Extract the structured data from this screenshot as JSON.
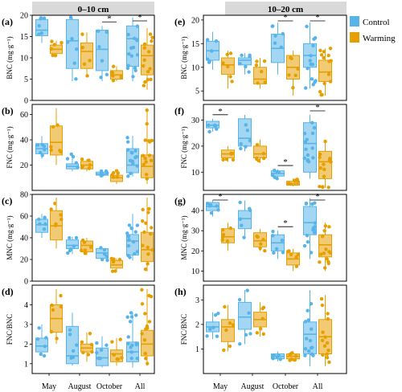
{
  "figure": {
    "legend": {
      "items": [
        {
          "label": "Control",
          "color": "#56B4E9"
        },
        {
          "label": "Warming",
          "color": "#E69F00"
        }
      ]
    },
    "column_headers": [
      "0–10 cm",
      "10–20 cm"
    ],
    "x_tick_labels": [
      "May",
      "August",
      "October",
      "All"
    ],
    "colors": {
      "control": "#56B4E9",
      "warming": "#E69F00",
      "header_bg": "#d9d9d9"
    }
  },
  "chart_data": [
    {
      "type": "box",
      "panel": "(a)",
      "ylabel": "BNC (mg·g⁻¹)",
      "ylim": [
        0,
        20
      ],
      "yticks": [
        0,
        5,
        10,
        15,
        20
      ],
      "categories": [
        "May",
        "August",
        "October",
        "All"
      ],
      "series": [
        {
          "name": "Control",
          "boxes": [
            {
              "min": 13.5,
              "q1": 15.2,
              "median": 16.5,
              "q3": 19.0,
              "max": 19.6
            },
            {
              "min": 4.5,
              "q1": 7.5,
              "median": 14.0,
              "q3": 19.0,
              "max": 19.5
            },
            {
              "min": 4.5,
              "q1": 7.0,
              "median": 12.0,
              "q3": 16.5,
              "max": 17.5
            },
            {
              "min": 4.5,
              "q1": 8.0,
              "median": 14.5,
              "q3": 17.5,
              "max": 19.5
            }
          ]
        },
        {
          "name": "Warming",
          "boxes": [
            {
              "min": 10.5,
              "q1": 11.0,
              "median": 12.0,
              "q3": 13.0,
              "max": 14.0
            },
            {
              "min": 5.5,
              "q1": 7.5,
              "median": 11.5,
              "q3": 13.5,
              "max": 16.0
            },
            {
              "min": 4.5,
              "q1": 5.0,
              "median": 6.0,
              "q3": 7.0,
              "max": 8.0
            },
            {
              "min": 2.5,
              "q1": 6.0,
              "median": 10.5,
              "q3": 13.0,
              "max": 17.0
            }
          ]
        }
      ],
      "significance": [
        {
          "category": "October",
          "label": "*"
        },
        {
          "category": "All",
          "label": "*"
        }
      ]
    },
    {
      "type": "box",
      "panel": "(b)",
      "ylabel": "FNC (mg·g⁻¹)",
      "ylim": [
        0,
        68
      ],
      "yticks": [
        20,
        40,
        60
      ],
      "categories": [
        "May",
        "August",
        "October",
        "All"
      ],
      "series": [
        {
          "name": "Control",
          "boxes": [
            {
              "min": 25,
              "q1": 29,
              "median": 33,
              "q3": 37,
              "max": 43
            },
            {
              "min": 15,
              "q1": 17,
              "median": 19,
              "q3": 21,
              "max": 29
            },
            {
              "min": 11,
              "q1": 12,
              "median": 13,
              "q3": 14.5,
              "max": 16
            },
            {
              "min": 11,
              "q1": 14,
              "median": 20,
              "q3": 33,
              "max": 43
            }
          ]
        },
        {
          "name": "Warming",
          "boxes": [
            {
              "min": 20,
              "q1": 28,
              "median": 38,
              "q3": 51,
              "max": 65
            },
            {
              "min": 15,
              "q1": 17,
              "median": 20,
              "q3": 23,
              "max": 25
            },
            {
              "min": 5,
              "q1": 7,
              "median": 10,
              "q3": 12,
              "max": 16
            },
            {
              "min": 5,
              "q1": 10,
              "median": 19,
              "q3": 28,
              "max": 65
            }
          ]
        }
      ],
      "significance": []
    },
    {
      "type": "box",
      "panel": "(c)",
      "ylabel": "MNC (mg·g⁻¹)",
      "ylim": [
        0,
        80
      ],
      "yticks": [
        0,
        20,
        40,
        60,
        80
      ],
      "categories": [
        "May",
        "August",
        "October",
        "All"
      ],
      "series": [
        {
          "name": "Control",
          "boxes": [
            {
              "min": 40,
              "q1": 45,
              "median": 52,
              "q3": 57,
              "max": 62
            },
            {
              "min": 25,
              "q1": 30,
              "median": 33,
              "q3": 38,
              "max": 41
            },
            {
              "min": 19,
              "q1": 21,
              "median": 26,
              "q3": 30,
              "max": 31
            },
            {
              "min": 19,
              "q1": 24,
              "median": 37,
              "q3": 43,
              "max": 62
            }
          ]
        },
        {
          "name": "Warming",
          "boxes": [
            {
              "min": 30,
              "q1": 38,
              "median": 51,
              "q3": 65,
              "max": 77
            },
            {
              "min": 24,
              "q1": 27,
              "median": 33,
              "q3": 37,
              "max": 40
            },
            {
              "min": 9,
              "q1": 12,
              "median": 15,
              "q3": 19,
              "max": 21
            },
            {
              "min": 9,
              "q1": 18,
              "median": 29,
              "q3": 45,
              "max": 77
            }
          ]
        }
      ],
      "significance": []
    },
    {
      "type": "box",
      "panel": "(d)",
      "ylabel": "FNC/BNC",
      "ylim": [
        0.5,
        5
      ],
      "yticks": [
        1,
        2,
        3,
        4
      ],
      "categories": [
        "May",
        "August",
        "October",
        "All"
      ],
      "series": [
        {
          "name": "Control",
          "boxes": [
            {
              "min": 1.4,
              "q1": 1.6,
              "median": 1.9,
              "q3": 2.3,
              "max": 3.0
            },
            {
              "min": 0.9,
              "q1": 1.0,
              "median": 1.4,
              "q3": 2.9,
              "max": 3.6
            },
            {
              "min": 0.8,
              "q1": 0.9,
              "median": 1.3,
              "q3": 1.8,
              "max": 2.4
            },
            {
              "min": 0.8,
              "q1": 1.1,
              "median": 1.6,
              "q3": 2.1,
              "max": 3.6
            }
          ]
        },
        {
          "name": "Warming",
          "boxes": [
            {
              "min": 2.0,
              "q1": 2.6,
              "median": 3.3,
              "q3": 4.0,
              "max": 4.8
            },
            {
              "min": 1.1,
              "q1": 1.6,
              "median": 1.8,
              "q3": 2.0,
              "max": 2.6
            },
            {
              "min": 0.9,
              "q1": 1.1,
              "median": 1.5,
              "q3": 1.7,
              "max": 2.3
            },
            {
              "min": 0.9,
              "q1": 1.4,
              "median": 2.0,
              "q3": 2.7,
              "max": 4.8
            }
          ]
        }
      ],
      "significance": []
    },
    {
      "type": "box",
      "panel": "(e)",
      "ylabel": "BNC (mg·g⁻¹)",
      "ylim": [
        3,
        21
      ],
      "yticks": [
        5,
        10,
        15,
        20
      ],
      "categories": [
        "May",
        "August",
        "October",
        "All"
      ],
      "series": [
        {
          "name": "Control",
          "boxes": [
            {
              "min": 9.5,
              "q1": 11.5,
              "median": 13.5,
              "q3": 15.5,
              "max": 17.5
            },
            {
              "min": 8.5,
              "q1": 10.5,
              "median": 11.5,
              "q3": 12.0,
              "max": 13.0
            },
            {
              "min": 8.5,
              "q1": 11.0,
              "median": 14.0,
              "q3": 17.0,
              "max": 19.5
            },
            {
              "min": 5.5,
              "q1": 10.0,
              "median": 12.5,
              "q3": 15.0,
              "max": 19.5
            }
          ]
        },
        {
          "name": "Warming",
          "boxes": [
            {
              "min": 5.5,
              "q1": 8.5,
              "median": 10.5,
              "q3": 12.0,
              "max": 13.5
            },
            {
              "min": 5.5,
              "q1": 6.5,
              "median": 7.5,
              "q3": 10.0,
              "max": 12.0
            },
            {
              "min": 4.0,
              "q1": 7.5,
              "median": 10.0,
              "q3": 12.5,
              "max": 13.5
            },
            {
              "min": 4.0,
              "q1": 7.0,
              "median": 9.0,
              "q3": 11.5,
              "max": 14.0
            }
          ]
        }
      ],
      "significance": [
        {
          "category": "October",
          "label": "*"
        },
        {
          "category": "All",
          "label": "*"
        }
      ]
    },
    {
      "type": "box",
      "panel": "(f)",
      "ylabel": "FNC (mg·g⁻¹)",
      "ylim": [
        3,
        36
      ],
      "yticks": [
        10,
        20,
        30
      ],
      "categories": [
        "May",
        "August",
        "October",
        "All"
      ],
      "series": [
        {
          "name": "Control",
          "boxes": [
            {
              "min": 25.5,
              "q1": 27.0,
              "median": 28.0,
              "q3": 29.5,
              "max": 30.5
            },
            {
              "min": 18.0,
              "q1": 20.0,
              "median": 23.0,
              "q3": 30.5,
              "max": 32.0
            },
            {
              "min": 7.5,
              "q1": 8.5,
              "median": 9.5,
              "q3": 10.5,
              "max": 11.0
            },
            {
              "min": 7.5,
              "q1": 10.0,
              "median": 21.0,
              "q3": 29.0,
              "max": 32.0
            }
          ]
        },
        {
          "name": "Warming",
          "boxes": [
            {
              "min": 14.0,
              "q1": 15.5,
              "median": 17.0,
              "q3": 18.5,
              "max": 20.0
            },
            {
              "min": 13.5,
              "q1": 15.5,
              "median": 17.0,
              "q3": 20.0,
              "max": 22.5
            },
            {
              "min": 4.5,
              "q1": 5.0,
              "median": 5.5,
              "q3": 6.5,
              "max": 7.5
            },
            {
              "min": 4.0,
              "q1": 7.5,
              "median": 14.0,
              "q3": 18.0,
              "max": 22.5
            }
          ]
        }
      ],
      "significance": [
        {
          "category": "May",
          "label": "*"
        },
        {
          "category": "October",
          "label": "*"
        },
        {
          "category": "All",
          "label": "*"
        }
      ]
    },
    {
      "type": "box",
      "panel": "(g)",
      "ylabel": "MNC (mg·g⁻¹)",
      "ylim": [
        5,
        48
      ],
      "yticks": [
        10,
        20,
        30,
        40
      ],
      "categories": [
        "May",
        "August",
        "October",
        "All"
      ],
      "series": [
        {
          "name": "Control",
          "boxes": [
            {
              "min": 37,
              "q1": 40,
              "median": 42,
              "q3": 44,
              "max": 45
            },
            {
              "min": 26,
              "q1": 31,
              "median": 36,
              "q3": 40,
              "max": 45
            },
            {
              "min": 16,
              "q1": 20,
              "median": 24,
              "q3": 28,
              "max": 30
            },
            {
              "min": 16,
              "q1": 28,
              "median": 34,
              "q3": 42,
              "max": 46
            }
          ]
        },
        {
          "name": "Warming",
          "boxes": [
            {
              "min": 20,
              "q1": 24,
              "median": 27,
              "q3": 31,
              "max": 34
            },
            {
              "min": 20,
              "q1": 22,
              "median": 25,
              "q3": 29,
              "max": 31
            },
            {
              "min": 10,
              "q1": 13,
              "median": 16,
              "q3": 19,
              "max": 21
            },
            {
              "min": 10,
              "q1": 17,
              "median": 23,
              "q3": 28,
              "max": 34
            }
          ]
        }
      ],
      "significance": [
        {
          "category": "May",
          "label": "*"
        },
        {
          "category": "October",
          "label": "*"
        },
        {
          "category": "All",
          "label": "*"
        }
      ]
    },
    {
      "type": "box",
      "panel": "(h)",
      "ylabel": "FNC/BNC",
      "ylim": [
        0,
        3.6
      ],
      "yticks": [
        1,
        2,
        3
      ],
      "categories": [
        "May",
        "August",
        "October",
        "All"
      ],
      "series": [
        {
          "name": "Control",
          "boxes": [
            {
              "min": 1.4,
              "q1": 1.7,
              "median": 1.9,
              "q3": 2.1,
              "max": 2.5
            },
            {
              "min": 1.2,
              "q1": 1.8,
              "median": 2.3,
              "q3": 2.9,
              "max": 3.4
            },
            {
              "min": 0.5,
              "q1": 0.6,
              "median": 0.7,
              "q3": 0.8,
              "max": 0.9
            },
            {
              "min": 0.3,
              "q1": 0.8,
              "median": 1.6,
              "q3": 2.1,
              "max": 3.4
            }
          ]
        },
        {
          "name": "Warming",
          "boxes": [
            {
              "min": 0.9,
              "q1": 1.3,
              "median": 1.9,
              "q3": 2.2,
              "max": 2.8
            },
            {
              "min": 1.5,
              "q1": 1.9,
              "median": 2.2,
              "q3": 2.5,
              "max": 2.9
            },
            {
              "min": 0.5,
              "q1": 0.6,
              "median": 0.7,
              "q3": 0.8,
              "max": 0.9
            },
            {
              "min": 0.3,
              "q1": 0.8,
              "median": 1.5,
              "q3": 2.2,
              "max": 3.2
            }
          ]
        }
      ],
      "significance": []
    }
  ]
}
